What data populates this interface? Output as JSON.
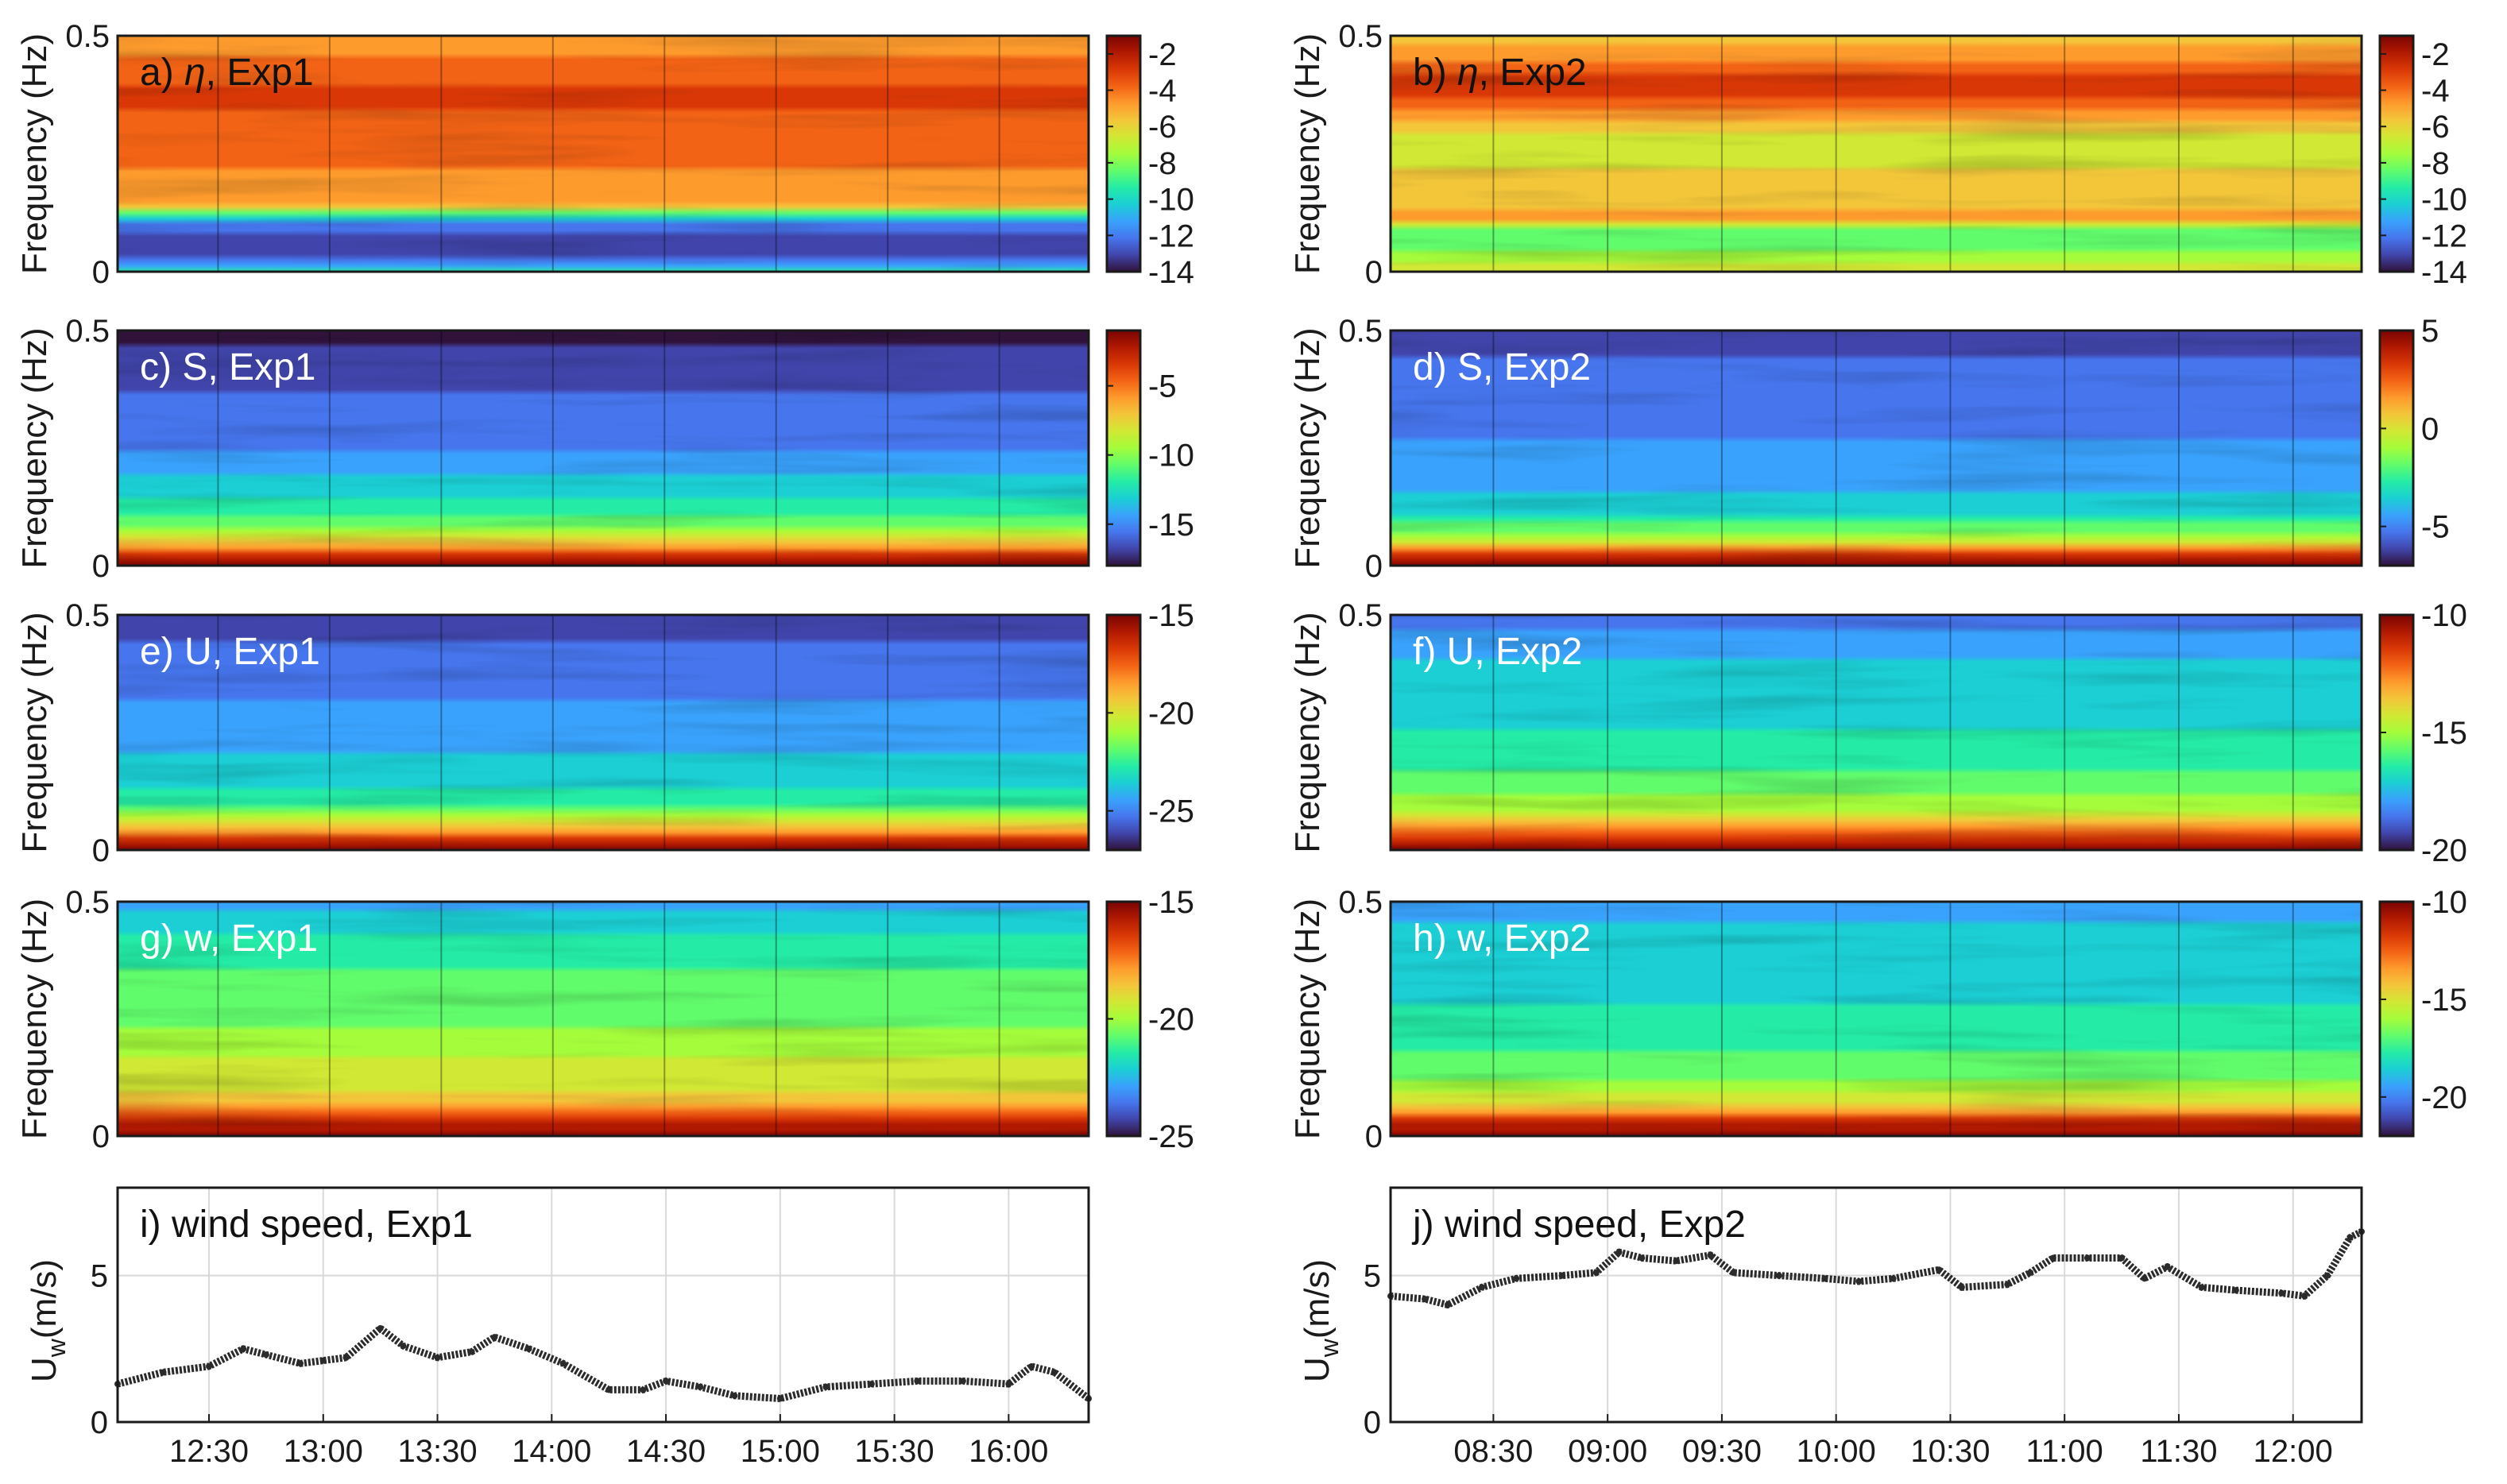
{
  "figure": {
    "ylabel_frequency": "Frequency (Hz)",
    "ylabel_wind_main": "U",
    "ylabel_wind_sub": "w",
    "ylabel_wind_unit": "(m/s)"
  },
  "colors": {
    "colormap": [
      "#30123b",
      "#4145ab",
      "#4675ed",
      "#39a2fc",
      "#1bcfd4",
      "#24eca6",
      "#61fc6c",
      "#a4fc3b",
      "#d1e834",
      "#f3c63a",
      "#fe9b2d",
      "#f36315",
      "#d93806",
      "#b11901",
      "#7a0402"
    ],
    "wind_line": "#2b2b2b",
    "gridline": "#d9d9d9"
  },
  "chart_data": [
    {
      "panel": "a",
      "type": "heatmap",
      "label_prefix": "a) ",
      "label_symbol": "η",
      "label_suffix": ", Exp1",
      "column": 1,
      "row": 0,
      "ylim": [
        0,
        0.5
      ],
      "yticks": [
        "0",
        "0.5"
      ],
      "clim": [
        -14,
        -1
      ],
      "cticks": [
        -2,
        -4,
        -6,
        -8,
        -10,
        -12,
        -14
      ],
      "label_style": "dark",
      "tick_hours": [
        12.5,
        13.0,
        13.5,
        14.0,
        14.5,
        15.0,
        15.5,
        16.0
      ],
      "profile": [
        [
          0.0,
          -9.5
        ],
        [
          0.02,
          -12.5
        ],
        [
          0.06,
          -13
        ],
        [
          0.1,
          -12
        ],
        [
          0.12,
          -10
        ],
        [
          0.14,
          -5
        ],
        [
          0.2,
          -4.5
        ],
        [
          0.26,
          -3.8
        ],
        [
          0.32,
          -3.4
        ],
        [
          0.38,
          -3.2
        ],
        [
          0.43,
          -3.8
        ],
        [
          0.47,
          -4.5
        ],
        [
          0.5,
          -5
        ]
      ]
    },
    {
      "panel": "b",
      "type": "heatmap",
      "label_prefix": "b) ",
      "label_symbol": "η",
      "label_suffix": ", Exp2",
      "column": 2,
      "row": 0,
      "ylim": [
        0,
        0.5
      ],
      "yticks": [
        "0",
        "0.5"
      ],
      "clim": [
        -14,
        -1
      ],
      "cticks": [
        -2,
        -4,
        -6,
        -8,
        -10,
        -12,
        -14
      ],
      "label_style": "dark",
      "tick_hours": [
        8.5,
        9.0,
        9.5,
        10.0,
        10.5,
        11.0,
        11.5,
        12.0
      ],
      "profile": [
        [
          0.0,
          -6.5
        ],
        [
          0.05,
          -8
        ],
        [
          0.09,
          -8.5
        ],
        [
          0.11,
          -5
        ],
        [
          0.16,
          -5.5
        ],
        [
          0.22,
          -6
        ],
        [
          0.26,
          -7
        ],
        [
          0.3,
          -6
        ],
        [
          0.36,
          -3.5
        ],
        [
          0.4,
          -2.5
        ],
        [
          0.45,
          -4.5
        ],
        [
          0.5,
          -5.5
        ]
      ]
    },
    {
      "panel": "c",
      "type": "heatmap",
      "label_prefix": "c) S",
      "label_symbol": "",
      "label_suffix": ", Exp1",
      "column": 1,
      "row": 1,
      "ylim": [
        0,
        0.5
      ],
      "yticks": [
        "0",
        "0.5"
      ],
      "clim": [
        -18,
        -1
      ],
      "cticks": [
        -5,
        -10,
        -15
      ],
      "label_style": "light",
      "tick_hours": [
        12.5,
        13.0,
        13.5,
        14.0,
        14.5,
        15.0,
        15.5,
        16.0
      ],
      "profile": [
        [
          0.0,
          -1
        ],
        [
          0.02,
          -2
        ],
        [
          0.04,
          -6
        ],
        [
          0.07,
          -9
        ],
        [
          0.1,
          -11
        ],
        [
          0.15,
          -13
        ],
        [
          0.25,
          -15
        ],
        [
          0.35,
          -16
        ],
        [
          0.45,
          -17
        ],
        [
          0.5,
          -18
        ]
      ]
    },
    {
      "panel": "d",
      "type": "heatmap",
      "label_prefix": "d) S",
      "label_symbol": "",
      "label_suffix": ", Exp2",
      "column": 2,
      "row": 1,
      "ylim": [
        0,
        0.5
      ],
      "yticks": [
        "0",
        "0.5"
      ],
      "clim": [
        -7,
        5
      ],
      "cticks": [
        5,
        0,
        -5
      ],
      "label_style": "light",
      "tick_hours": [
        8.5,
        9.0,
        9.5,
        10.0,
        10.5,
        11.0,
        11.5,
        12.0
      ],
      "profile": [
        [
          0.0,
          5
        ],
        [
          0.03,
          3
        ],
        [
          0.05,
          0
        ],
        [
          0.08,
          -2
        ],
        [
          0.12,
          -3.5
        ],
        [
          0.2,
          -4.5
        ],
        [
          0.3,
          -5
        ],
        [
          0.4,
          -5.5
        ],
        [
          0.5,
          -6
        ]
      ]
    },
    {
      "panel": "e",
      "type": "heatmap",
      "label_prefix": "e) U",
      "label_symbol": "",
      "label_suffix": ", Exp1",
      "column": 1,
      "row": 2,
      "ylim": [
        0,
        0.5
      ],
      "yticks": [
        "0",
        "0.5"
      ],
      "clim": [
        -27,
        -15
      ],
      "cticks": [
        -15,
        -20,
        -25
      ],
      "label_style": "light",
      "tick_hours": [
        12.5,
        13.0,
        13.5,
        14.0,
        14.5,
        15.0,
        15.5,
        16.0
      ],
      "profile": [
        [
          0.0,
          -15
        ],
        [
          0.02,
          -16.5
        ],
        [
          0.04,
          -19
        ],
        [
          0.07,
          -21
        ],
        [
          0.1,
          -22.5
        ],
        [
          0.15,
          -23.5
        ],
        [
          0.25,
          -24.5
        ],
        [
          0.35,
          -25
        ],
        [
          0.45,
          -25.8
        ],
        [
          0.5,
          -26.5
        ]
      ]
    },
    {
      "panel": "f",
      "type": "heatmap",
      "label_prefix": "f) U",
      "label_symbol": "",
      "label_suffix": ", Exp2",
      "column": 2,
      "row": 2,
      "ylim": [
        0,
        0.5
      ],
      "yticks": [
        "0.5"
      ],
      "clim": [
        -20,
        -10
      ],
      "cticks": [
        -10,
        -15,
        -20
      ],
      "label_style": "light",
      "tick_hours": [
        8.5,
        9.0,
        9.5,
        10.0,
        10.5,
        11.0,
        11.5,
        12.0
      ],
      "profile": [
        [
          0.0,
          -10
        ],
        [
          0.02,
          -11
        ],
        [
          0.05,
          -13
        ],
        [
          0.08,
          -14.5
        ],
        [
          0.12,
          -15.5
        ],
        [
          0.2,
          -16.5
        ],
        [
          0.3,
          -17
        ],
        [
          0.4,
          -17.5
        ],
        [
          0.5,
          -18.5
        ]
      ]
    },
    {
      "panel": "g",
      "type": "heatmap",
      "label_prefix": "g) w",
      "label_symbol": "",
      "label_suffix": ", Exp1",
      "column": 1,
      "row": 3,
      "ylim": [
        0,
        0.5
      ],
      "yticks": [
        "0",
        "0.5"
      ],
      "clim": [
        -25,
        -15
      ],
      "cticks": [
        -15,
        -20,
        -25
      ],
      "label_style": "light",
      "tick_hours": [
        12.5,
        13.0,
        13.5,
        14.0,
        14.5,
        15.0,
        15.5,
        16.0
      ],
      "profile": [
        [
          0.0,
          -15
        ],
        [
          0.03,
          -16
        ],
        [
          0.06,
          -18
        ],
        [
          0.1,
          -19
        ],
        [
          0.15,
          -19.5
        ],
        [
          0.25,
          -20.5
        ],
        [
          0.35,
          -21
        ],
        [
          0.45,
          -22
        ],
        [
          0.5,
          -23
        ]
      ]
    },
    {
      "panel": "h",
      "type": "heatmap",
      "label_prefix": "h) w",
      "label_symbol": "",
      "label_suffix": ", Exp2",
      "column": 2,
      "row": 3,
      "ylim": [
        0,
        0.5
      ],
      "yticks": [
        "0",
        "0.5"
      ],
      "clim": [
        -22,
        -10
      ],
      "cticks": [
        -10,
        -15,
        -20
      ],
      "label_style": "light",
      "tick_hours": [
        8.5,
        9.0,
        9.5,
        10.0,
        10.5,
        11.0,
        11.5,
        12.0
      ],
      "profile": [
        [
          0.0,
          -10
        ],
        [
          0.03,
          -11.5
        ],
        [
          0.06,
          -14
        ],
        [
          0.1,
          -16
        ],
        [
          0.15,
          -17
        ],
        [
          0.25,
          -18
        ],
        [
          0.35,
          -18.5
        ],
        [
          0.45,
          -19
        ],
        [
          0.5,
          -19.5
        ]
      ]
    },
    {
      "panel": "i",
      "type": "line",
      "label": "i) wind speed, Exp1",
      "column": 1,
      "row": 4,
      "ylim": [
        0,
        8
      ],
      "yticks": [
        0,
        5
      ],
      "xlim_hours": [
        12.1,
        16.35
      ],
      "xtick_hours": [
        12.5,
        13.0,
        13.5,
        14.0,
        14.5,
        15.0,
        15.5,
        16.0
      ],
      "xtick_labels": [
        "12:30",
        "13:00",
        "13:30",
        "14:00",
        "14:30",
        "15:00",
        "15:30",
        "16:00"
      ],
      "x": [
        12.1,
        12.3,
        12.5,
        12.65,
        12.75,
        12.9,
        13.0,
        13.1,
        13.25,
        13.35,
        13.5,
        13.65,
        13.75,
        13.9,
        14.05,
        14.25,
        14.4,
        14.5,
        14.65,
        14.8,
        15.0,
        15.2,
        15.4,
        15.6,
        15.8,
        16.0,
        16.1,
        16.2,
        16.35
      ],
      "y": [
        1.3,
        1.7,
        1.9,
        2.5,
        2.3,
        2.0,
        2.1,
        2.2,
        3.2,
        2.6,
        2.2,
        2.4,
        2.9,
        2.5,
        2.0,
        1.1,
        1.1,
        1.4,
        1.2,
        0.9,
        0.8,
        1.2,
        1.3,
        1.4,
        1.4,
        1.3,
        1.9,
        1.7,
        0.8
      ]
    },
    {
      "panel": "j",
      "type": "line",
      "label": "j) wind speed, Exp2",
      "column": 2,
      "row": 4,
      "ylim": [
        0,
        8
      ],
      "yticks": [
        0,
        5
      ],
      "xlim_hours": [
        8.05,
        12.3
      ],
      "xtick_hours": [
        8.5,
        9.0,
        9.5,
        10.0,
        10.5,
        11.0,
        11.5,
        12.0
      ],
      "xtick_labels": [
        "08:30",
        "09:00",
        "09:30",
        "10:00",
        "10:30",
        "11:00",
        "11:30",
        "12:00"
      ],
      "x": [
        8.05,
        8.2,
        8.3,
        8.45,
        8.6,
        8.8,
        8.95,
        9.05,
        9.15,
        9.3,
        9.45,
        9.55,
        9.75,
        9.95,
        10.1,
        10.25,
        10.45,
        10.55,
        10.75,
        10.85,
        10.95,
        11.1,
        11.25,
        11.35,
        11.45,
        11.6,
        11.75,
        11.95,
        12.05,
        12.15,
        12.25,
        12.3
      ],
      "y": [
        4.3,
        4.2,
        4.0,
        4.6,
        4.9,
        5.0,
        5.1,
        5.8,
        5.6,
        5.5,
        5.7,
        5.1,
        5.0,
        4.9,
        4.8,
        4.9,
        5.2,
        4.6,
        4.7,
        5.1,
        5.6,
        5.6,
        5.6,
        4.9,
        5.3,
        4.6,
        4.5,
        4.4,
        4.3,
        5.0,
        6.3,
        6.5
      ]
    }
  ]
}
